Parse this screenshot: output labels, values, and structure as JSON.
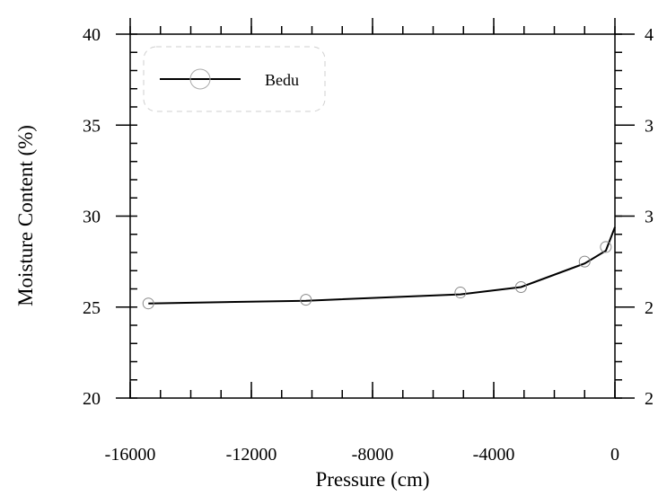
{
  "chart_data": {
    "type": "line",
    "title": "",
    "xlabel": "Pressure  (cm)",
    "ylabel": "Moisture Content (%)",
    "xlim": [
      -16000,
      0
    ],
    "ylim": [
      20,
      40
    ],
    "x_ticks": [
      -16000,
      -12000,
      -8000,
      -4000,
      0
    ],
    "x_tick_labels": [
      "-16000",
      "-12000",
      "-8000",
      "-4000",
      "0"
    ],
    "y_ticks": [
      20,
      25,
      30,
      35,
      40
    ],
    "y_tick_labels": [
      "20",
      "25",
      "30",
      "35",
      "40"
    ],
    "y2_tick_labels": [
      "2",
      "2",
      "3",
      "3",
      "4"
    ],
    "grid": false,
    "legend_position": "top-left",
    "series": [
      {
        "name": "Bedu",
        "marker": "open-circle",
        "color": "#000000",
        "points": [
          {
            "x": -15400,
            "y": 25.2
          },
          {
            "x": -10200,
            "y": 25.4
          },
          {
            "x": -5100,
            "y": 25.8
          },
          {
            "x": -3100,
            "y": 26.1
          },
          {
            "x": -1000,
            "y": 27.5
          },
          {
            "x": -300,
            "y": 28.3
          }
        ],
        "curve": [
          {
            "x": -15400,
            "y": 25.2
          },
          {
            "x": -10200,
            "y": 25.35
          },
          {
            "x": -5100,
            "y": 25.7
          },
          {
            "x": -3100,
            "y": 26.1
          },
          {
            "x": -1000,
            "y": 27.4
          },
          {
            "x": -300,
            "y": 28.1
          },
          {
            "x": 0,
            "y": 29.4
          }
        ]
      }
    ]
  }
}
